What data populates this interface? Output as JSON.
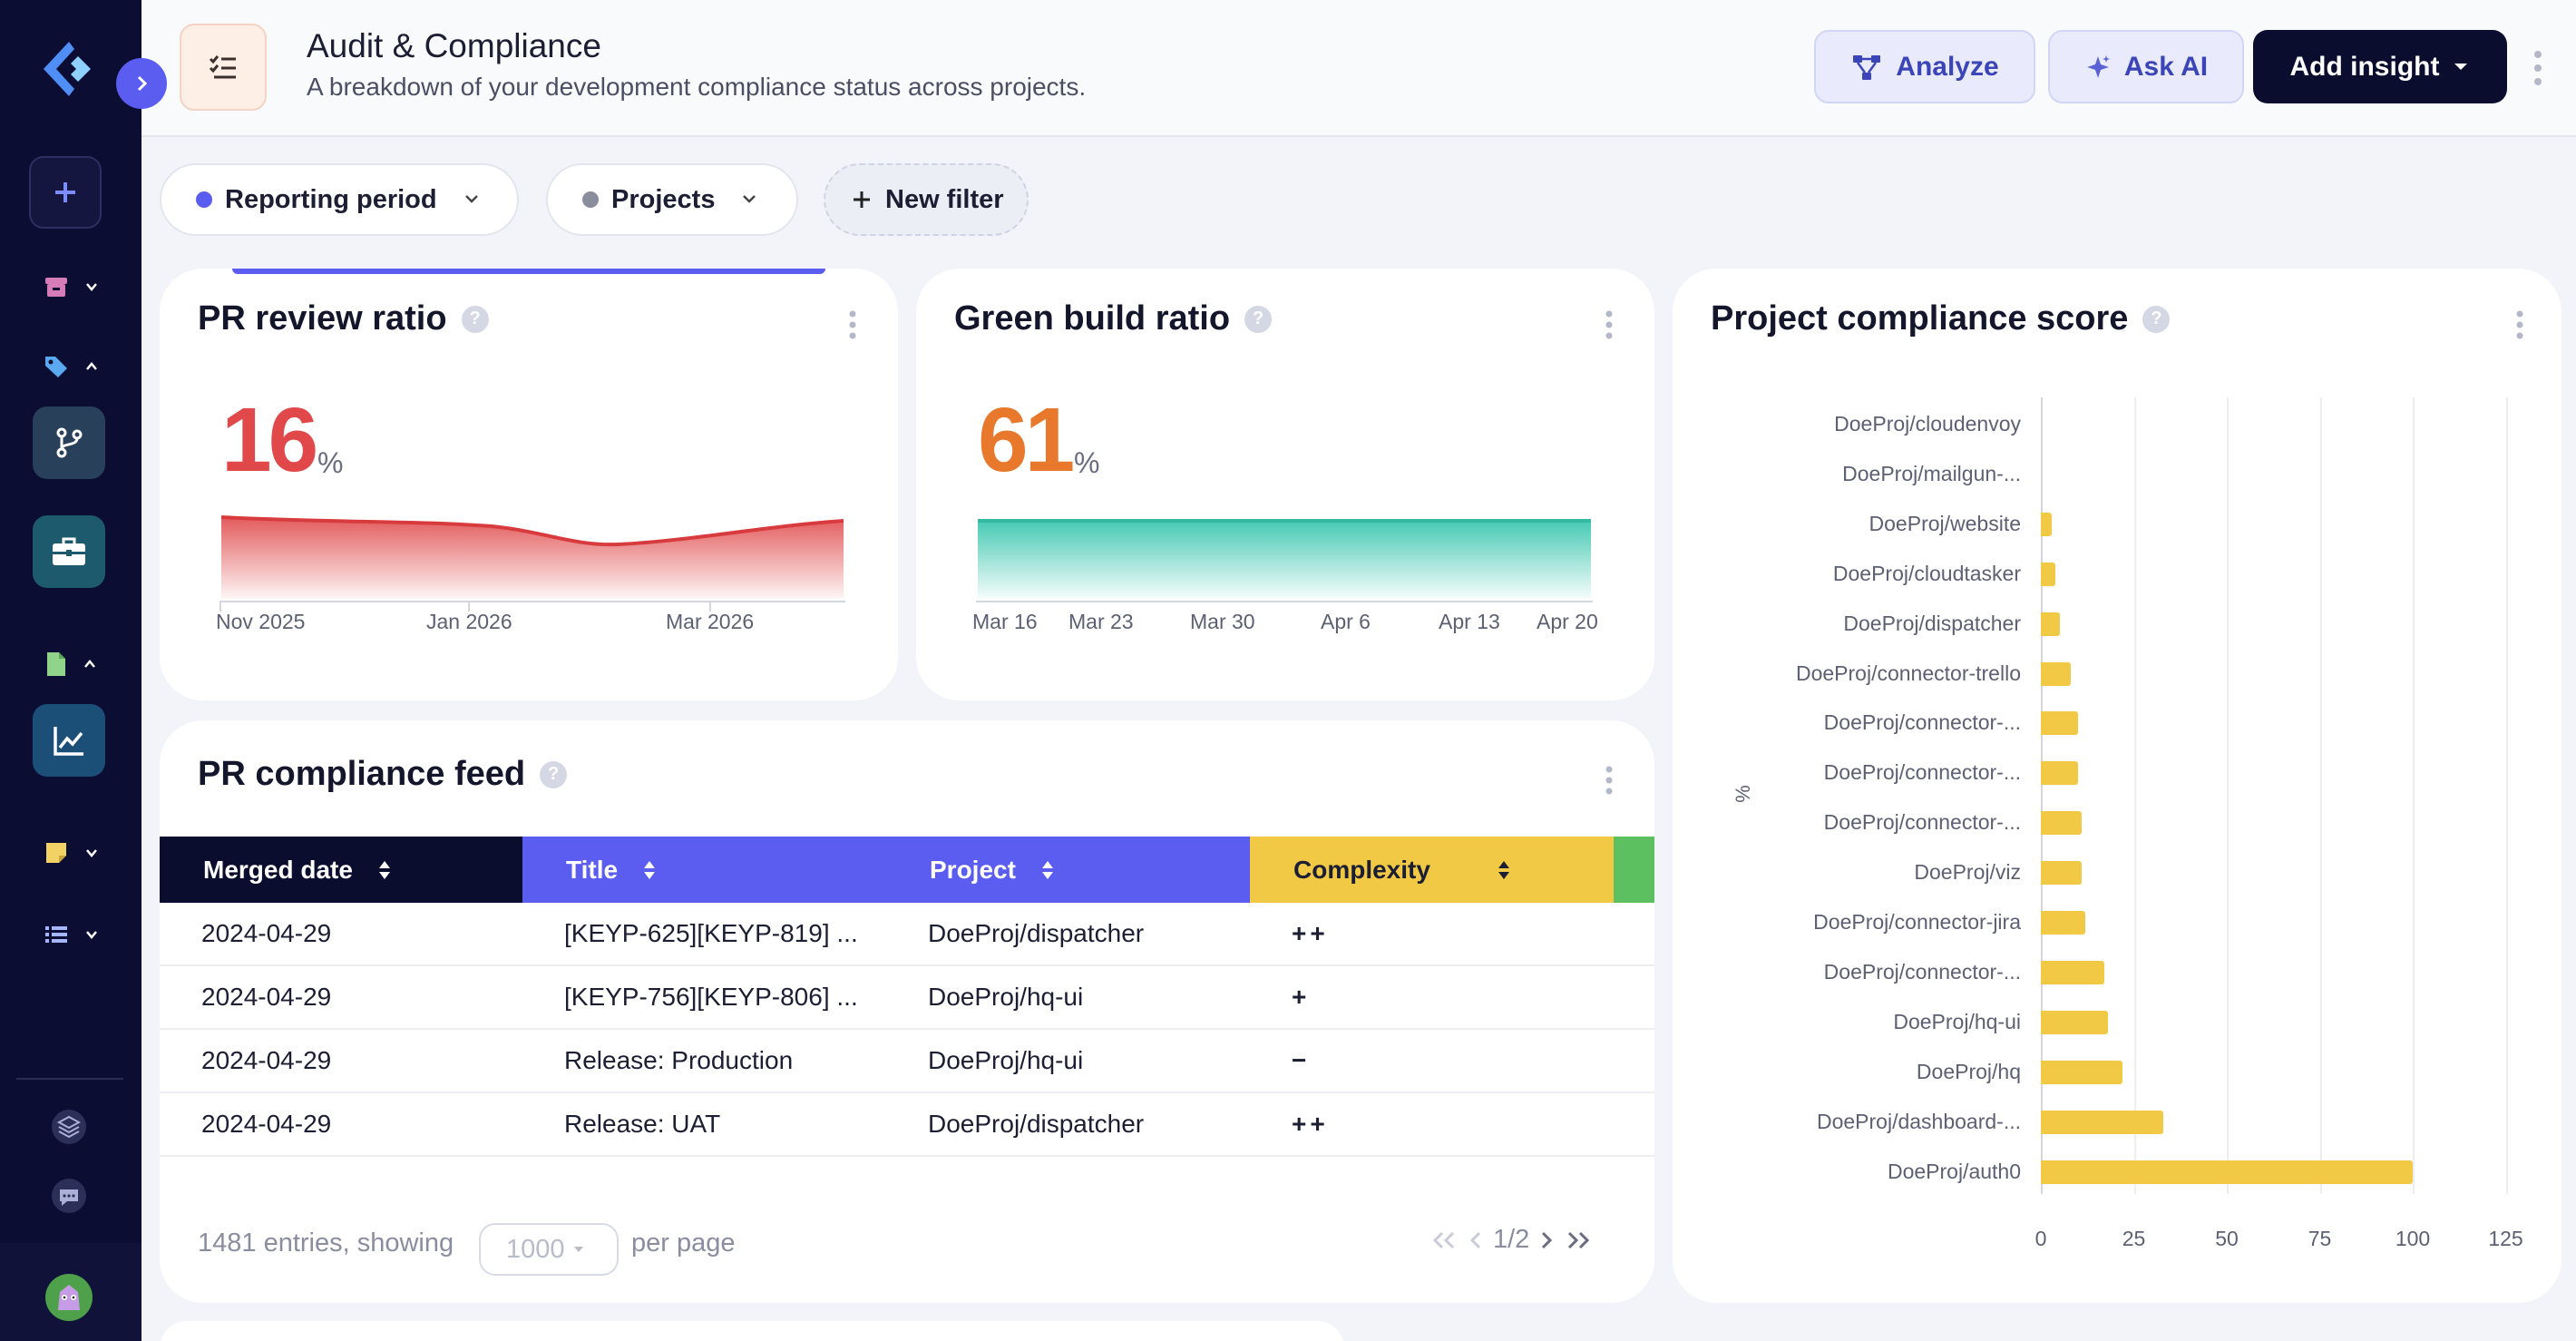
{
  "header": {
    "title": "Audit & Compliance",
    "subtitle": "A breakdown of your development compliance status across projects.",
    "analyze_label": "Analyze",
    "ask_ai_label": "Ask AI",
    "add_insight_label": "Add insight"
  },
  "filters": {
    "reporting_period": "Reporting period",
    "projects": "Projects",
    "new_filter": "New filter"
  },
  "colors": {
    "accent": "#5b5cf0",
    "pr_ratio": "#e0484a",
    "green_build": "#e8782c",
    "bar": "#f1c944",
    "navy": "#0b0d33"
  },
  "pr_review": {
    "title": "PR review ratio",
    "value": "16",
    "unit": "%",
    "ticks": [
      "Nov 2025",
      "Jan 2026",
      "Mar 2026"
    ]
  },
  "green_build": {
    "title": "Green build ratio",
    "value": "61",
    "unit": "%",
    "ticks": [
      "Mar 16",
      "Mar 23",
      "Mar 30",
      "Apr 6",
      "Apr 13",
      "Apr 20"
    ]
  },
  "feed": {
    "title": "PR compliance feed",
    "columns": [
      "Merged date",
      "Title",
      "Project",
      "Complexity"
    ],
    "rows": [
      {
        "date": "2024-04-29",
        "title": "[KEYP-625][KEYP-819] ...",
        "project": "DoeProj/dispatcher",
        "complexity": "++"
      },
      {
        "date": "2024-04-29",
        "title": "[KEYP-756][KEYP-806] ...",
        "project": "DoeProj/hq-ui",
        "complexity": "+"
      },
      {
        "date": "2024-04-29",
        "title": "Release: Production",
        "project": "DoeProj/hq-ui",
        "complexity": "−"
      },
      {
        "date": "2024-04-29",
        "title": "Release: UAT",
        "project": "DoeProj/dispatcher",
        "complexity": "++"
      }
    ],
    "entries_text": "1481 entries, showing",
    "per_page_value": "1000",
    "per_page_label": "per page",
    "page": "1/2"
  },
  "chart_data": {
    "type": "bar",
    "orientation": "horizontal",
    "title": "Project compliance score",
    "ylabel": "%",
    "xlim": [
      0,
      125
    ],
    "xticks": [
      0,
      25,
      50,
      75,
      100,
      125
    ],
    "grid": true,
    "categories": [
      "DoeProj/cloudenvoy",
      "DoeProj/mailgun-...",
      "DoeProj/website",
      "DoeProj/cloudtasker",
      "DoeProj/dispatcher",
      "DoeProj/connector-trello",
      "DoeProj/connector-...",
      "DoeProj/connector-...",
      "DoeProj/connector-...",
      "DoeProj/viz",
      "DoeProj/connector-jira",
      "DoeProj/connector-...",
      "DoeProj/hq-ui",
      "DoeProj/hq",
      "DoeProj/dashboard-...",
      "DoeProj/auth0"
    ],
    "values": [
      0,
      0,
      3,
      4,
      5,
      8,
      10,
      10,
      11,
      11,
      12,
      17,
      18,
      22,
      33,
      100
    ]
  }
}
